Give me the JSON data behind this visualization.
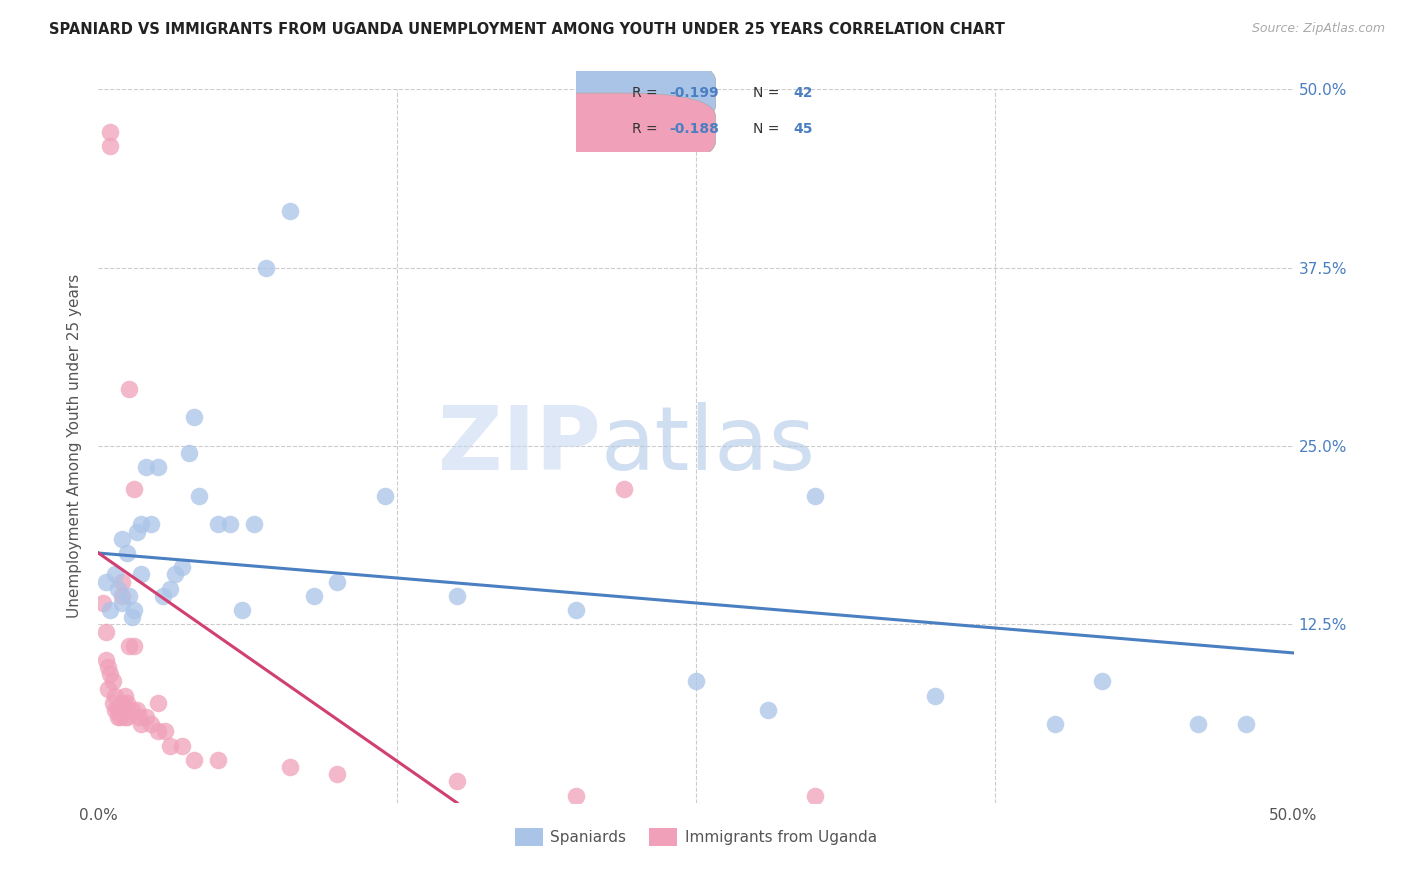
{
  "title": "SPANIARD VS IMMIGRANTS FROM UGANDA UNEMPLOYMENT AMONG YOUTH UNDER 25 YEARS CORRELATION CHART",
  "source": "Source: ZipAtlas.com",
  "ylabel": "Unemployment Among Youth under 25 years",
  "xlim": [
    0,
    0.5
  ],
  "ylim": [
    0,
    0.5
  ],
  "xtick_positions": [
    0.0,
    0.125,
    0.25,
    0.375,
    0.5
  ],
  "xtick_labels": [
    "0.0%",
    "",
    "",
    "",
    "50.0%"
  ],
  "ytick_positions": [
    0.0,
    0.125,
    0.25,
    0.375,
    0.5
  ],
  "ytick_labels_right": [
    "",
    "12.5%",
    "25.0%",
    "37.5%",
    "50.0%"
  ],
  "legend_label1": "Spaniards",
  "legend_label2": "Immigrants from Uganda",
  "spaniards_color": "#aac4e8",
  "uganda_color": "#f0a0b8",
  "trendline_blue": "#4a7fc1",
  "trendline_pink": "#d04070",
  "watermark_zip": "ZIP",
  "watermark_atlas": "atlas",
  "spaniards_x": [
    0.003,
    0.005,
    0.007,
    0.008,
    0.01,
    0.01,
    0.012,
    0.013,
    0.014,
    0.015,
    0.016,
    0.018,
    0.018,
    0.02,
    0.022,
    0.025,
    0.027,
    0.03,
    0.032,
    0.035,
    0.038,
    0.04,
    0.042,
    0.05,
    0.055,
    0.06,
    0.065,
    0.07,
    0.08,
    0.09,
    0.1,
    0.12,
    0.15,
    0.2,
    0.25,
    0.28,
    0.3,
    0.35,
    0.4,
    0.42,
    0.46,
    0.48
  ],
  "spaniards_y": [
    0.155,
    0.135,
    0.16,
    0.15,
    0.185,
    0.14,
    0.175,
    0.145,
    0.13,
    0.135,
    0.19,
    0.195,
    0.16,
    0.235,
    0.195,
    0.235,
    0.145,
    0.15,
    0.16,
    0.165,
    0.245,
    0.27,
    0.215,
    0.195,
    0.195,
    0.135,
    0.195,
    0.375,
    0.415,
    0.145,
    0.155,
    0.215,
    0.145,
    0.135,
    0.085,
    0.065,
    0.215,
    0.075,
    0.055,
    0.085,
    0.055,
    0.055
  ],
  "uganda_x": [
    0.002,
    0.003,
    0.003,
    0.004,
    0.004,
    0.005,
    0.005,
    0.005,
    0.006,
    0.006,
    0.007,
    0.007,
    0.008,
    0.008,
    0.009,
    0.01,
    0.01,
    0.01,
    0.011,
    0.011,
    0.012,
    0.012,
    0.013,
    0.013,
    0.014,
    0.015,
    0.015,
    0.016,
    0.017,
    0.018,
    0.02,
    0.022,
    0.025,
    0.025,
    0.028,
    0.03,
    0.035,
    0.04,
    0.05,
    0.08,
    0.1,
    0.15,
    0.2,
    0.3,
    0.22
  ],
  "uganda_y": [
    0.14,
    0.12,
    0.1,
    0.095,
    0.08,
    0.47,
    0.46,
    0.09,
    0.085,
    0.07,
    0.065,
    0.075,
    0.065,
    0.06,
    0.06,
    0.155,
    0.145,
    0.07,
    0.075,
    0.06,
    0.07,
    0.06,
    0.29,
    0.11,
    0.065,
    0.22,
    0.11,
    0.065,
    0.06,
    0.055,
    0.06,
    0.055,
    0.07,
    0.05,
    0.05,
    0.04,
    0.04,
    0.03,
    0.03,
    0.025,
    0.02,
    0.015,
    0.005,
    0.005,
    0.22
  ],
  "blue_trend_x0": 0.0,
  "blue_trend_y0": 0.175,
  "blue_trend_x1": 0.5,
  "blue_trend_y1": 0.105,
  "pink_trend_x0": 0.0,
  "pink_trend_y0": 0.175,
  "pink_trend_x1": 0.15,
  "pink_trend_y1": 0.0
}
